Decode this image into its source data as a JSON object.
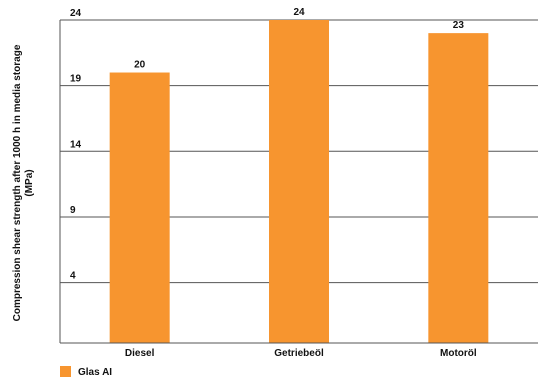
{
  "chart_data": {
    "type": "bar",
    "categories": [
      "Diesel",
      "Getriebeöl",
      "Motoröl"
    ],
    "series": [
      {
        "name": "Glas AI",
        "values": [
          20,
          24,
          23
        ]
      }
    ],
    "data_labels": [
      "20",
      "24",
      "23"
    ],
    "ylabel_lines": [
      "Compression shear strength after 1000 h in media storage",
      "(MPa)"
    ],
    "yticks": [
      4,
      9,
      14,
      19,
      24
    ],
    "ylim": [
      -0.6,
      24
    ],
    "grid": true,
    "legend": "bottom-left",
    "colors": {
      "bar": "#F7952F",
      "grid": "#555555"
    }
  }
}
